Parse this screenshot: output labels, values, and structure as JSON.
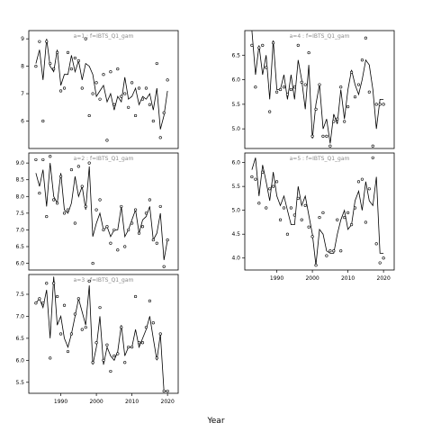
{
  "figure": {
    "xlabel": "Year"
  },
  "chart_data": {
    "type": "scatter",
    "xlabel": "Year",
    "ylabel": "",
    "xlim": [
      1981,
      2023
    ],
    "x_ticks": [
      1990,
      2000,
      2010,
      2020
    ],
    "panels": [
      {
        "strip": "a=1 : f=IBTS_Q1_gam",
        "ylim": [
          5.0,
          9.3
        ],
        "y_ticks": [
          6,
          7,
          8,
          9
        ],
        "line": {
          "x": [
            1983,
            1984,
            1985,
            1986,
            1987,
            1988,
            1989,
            1990,
            1991,
            1992,
            1993,
            1994,
            1995,
            1996,
            1997,
            1998,
            1999,
            2000,
            2001,
            2002,
            2003,
            2004,
            2005,
            2006,
            2007,
            2008,
            2009,
            2010,
            2011,
            2012,
            2013,
            2014,
            2015,
            2016,
            2017,
            2018,
            2019,
            2020
          ],
          "y": [
            8.1,
            8.6,
            7.5,
            9.0,
            8.0,
            7.8,
            8.6,
            7.3,
            7.7,
            7.7,
            8.4,
            7.8,
            8.2,
            7.5,
            8.1,
            8.0,
            7.7,
            6.9,
            7.1,
            7.3,
            6.7,
            7.0,
            6.4,
            6.9,
            6.7,
            7.6,
            6.8,
            6.9,
            7.2,
            6.6,
            6.9,
            6.8,
            7.0,
            6.4,
            7.2,
            5.7,
            6.2,
            7.1
          ]
        },
        "points": {
          "x": [
            1983,
            1984,
            1985,
            1986,
            1987,
            1988,
            1989,
            1990,
            1991,
            1992,
            1993,
            1994,
            1995,
            1996,
            1997,
            1998,
            1999,
            2000,
            2001,
            2002,
            2003,
            2004,
            2005,
            2006,
            2007,
            2008,
            2009,
            2010,
            2011,
            2012,
            2013,
            2014,
            2015,
            2016,
            2017,
            2018,
            2019,
            2020
          ],
          "y": [
            8.0,
            8.9,
            6.0,
            8.9,
            8.1,
            7.9,
            8.5,
            7.1,
            7.2,
            8.5,
            7.9,
            8.3,
            8.2,
            7.2,
            9.0,
            6.2,
            7.0,
            7.4,
            6.8,
            7.7,
            5.3,
            7.8,
            6.6,
            7.9,
            6.9,
            7.0,
            6.5,
            7.4,
            6.2,
            7.2,
            6.8,
            7.2,
            6.6,
            6.0,
            8.1,
            5.4,
            6.3,
            7.5
          ]
        }
      },
      {
        "strip": "a=2 : f=IBTS_Q1_gam",
        "ylim": [
          5.8,
          9.3
        ],
        "y_ticks": [
          6.0,
          6.5,
          7.0,
          7.5,
          8.0,
          8.5,
          9.0
        ],
        "line": {
          "x": [
            1983,
            1984,
            1985,
            1986,
            1987,
            1988,
            1989,
            1990,
            1991,
            1992,
            1993,
            1994,
            1995,
            1996,
            1997,
            1998,
            1999,
            2000,
            2001,
            2002,
            2003,
            2004,
            2005,
            2006,
            2007,
            2008,
            2009,
            2010,
            2011,
            2012,
            2013,
            2014,
            2015,
            2016,
            2017,
            2018,
            2019,
            2020
          ],
          "y": [
            8.7,
            8.3,
            8.8,
            7.7,
            9.0,
            8.0,
            7.8,
            8.7,
            7.6,
            7.5,
            7.8,
            8.6,
            8.0,
            8.3,
            7.6,
            8.9,
            6.8,
            7.2,
            7.5,
            7.0,
            7.1,
            6.8,
            7.0,
            7.0,
            7.7,
            6.8,
            7.0,
            7.3,
            7.6,
            6.9,
            7.3,
            7.4,
            7.7,
            6.7,
            6.9,
            7.5,
            6.1,
            6.7
          ]
        },
        "points": {
          "x": [
            1983,
            1984,
            1985,
            1986,
            1987,
            1988,
            1989,
            1990,
            1991,
            1992,
            1993,
            1994,
            1995,
            1996,
            1997,
            1998,
            1999,
            2000,
            2001,
            2002,
            2003,
            2004,
            2005,
            2006,
            2007,
            2008,
            2009,
            2010,
            2011,
            2012,
            2013,
            2014,
            2015,
            2016,
            2017,
            2018,
            2019,
            2020
          ],
          "y": [
            9.1,
            8.1,
            9.1,
            7.4,
            9.2,
            7.9,
            7.8,
            8.6,
            7.5,
            7.6,
            8.8,
            7.2,
            8.9,
            8.3,
            7.7,
            9.0,
            6.0,
            7.6,
            7.9,
            7.0,
            7.1,
            6.6,
            7.0,
            6.4,
            7.7,
            6.5,
            7.0,
            7.2,
            7.6,
            6.9,
            7.1,
            7.5,
            7.9,
            6.7,
            6.6,
            7.7,
            5.9,
            6.7
          ]
        }
      },
      {
        "strip": "a=3 : f=IBTS_Q1_gam",
        "ylim": [
          5.25,
          7.95
        ],
        "y_ticks": [
          5.5,
          6.0,
          6.5,
          7.0,
          7.5
        ],
        "line": {
          "x": [
            1983,
            1984,
            1985,
            1986,
            1987,
            1988,
            1989,
            1990,
            1991,
            1992,
            1993,
            1994,
            1995,
            1996,
            1997,
            1998,
            1999,
            2000,
            2001,
            2002,
            2003,
            2004,
            2005,
            2006,
            2007,
            2008,
            2009,
            2010,
            2011,
            2012,
            2013,
            2014,
            2015,
            2016,
            2017,
            2018,
            2019,
            2020
          ],
          "y": [
            7.3,
            7.4,
            7.2,
            7.6,
            6.5,
            7.9,
            6.8,
            7.0,
            6.5,
            6.3,
            6.6,
            7.0,
            7.4,
            7.1,
            6.8,
            7.7,
            5.9,
            6.3,
            7.0,
            5.9,
            6.3,
            6.1,
            6.0,
            6.2,
            6.8,
            6.1,
            6.3,
            6.3,
            6.7,
            6.3,
            6.5,
            6.7,
            7.0,
            6.5,
            6.0,
            6.6,
            5.3,
            5.3
          ]
        },
        "points": {
          "x": [
            1983,
            1984,
            1985,
            1986,
            1987,
            1988,
            1989,
            1990,
            1991,
            1992,
            1993,
            1994,
            1995,
            1996,
            1997,
            1998,
            1999,
            2000,
            2001,
            2002,
            2003,
            2004,
            2005,
            2006,
            2007,
            2008,
            2009,
            2010,
            2011,
            2012,
            2013,
            2014,
            2015,
            2016,
            2017,
            2018,
            2019,
            2020
          ],
          "y": [
            7.3,
            7.4,
            7.3,
            7.75,
            6.05,
            7.75,
            7.45,
            6.6,
            7.25,
            6.2,
            6.6,
            7.05,
            7.4,
            6.7,
            6.75,
            7.8,
            5.95,
            6.4,
            7.2,
            6.0,
            6.35,
            5.75,
            6.1,
            6.15,
            6.75,
            5.95,
            6.3,
            6.3,
            7.45,
            6.4,
            6.4,
            6.75,
            7.35,
            6.85,
            6.05,
            6.6,
            5.3,
            5.3
          ]
        }
      },
      {
        "strip": "a=4 : f=IBTS_Q1_gam",
        "ylim": [
          4.6,
          7.0
        ],
        "y_ticks": [
          5.0,
          5.5,
          6.0,
          6.5
        ],
        "line": {
          "x": [
            1983,
            1984,
            1985,
            1986,
            1987,
            1988,
            1989,
            1990,
            1991,
            1992,
            1993,
            1994,
            1995,
            1996,
            1997,
            1998,
            1999,
            2000,
            2001,
            2002,
            2003,
            2004,
            2005,
            2006,
            2007,
            2008,
            2009,
            2010,
            2011,
            2012,
            2013,
            2014,
            2015,
            2016,
            2017,
            2018,
            2019,
            2020
          ],
          "y": [
            7.0,
            6.1,
            6.7,
            6.1,
            6.5,
            5.6,
            6.8,
            5.8,
            5.8,
            6.1,
            5.6,
            6.1,
            5.6,
            6.4,
            6.0,
            5.4,
            6.3,
            4.8,
            5.5,
            5.9,
            5.0,
            5.2,
            4.7,
            5.3,
            5.1,
            5.8,
            5.2,
            5.8,
            6.2,
            5.9,
            5.7,
            6.0,
            6.4,
            6.3,
            5.8,
            5.0,
            5.6,
            5.6
          ]
        },
        "points": {
          "x": [
            1983,
            1984,
            1985,
            1986,
            1987,
            1988,
            1989,
            1990,
            1991,
            1992,
            1993,
            1994,
            1995,
            1996,
            1997,
            1998,
            1999,
            2000,
            2001,
            2002,
            2003,
            2004,
            2005,
            2006,
            2007,
            2008,
            2009,
            2010,
            2011,
            2012,
            2013,
            2014,
            2015,
            2016,
            2017,
            2018,
            2019,
            2020
          ],
          "y": [
            6.7,
            5.85,
            6.65,
            6.7,
            6.25,
            5.35,
            6.75,
            5.75,
            5.8,
            5.85,
            5.7,
            5.8,
            5.85,
            6.7,
            5.95,
            5.9,
            6.55,
            4.85,
            5.4,
            5.9,
            4.85,
            4.85,
            4.65,
            5.15,
            5.2,
            5.85,
            5.15,
            5.45,
            6.15,
            5.65,
            5.9,
            6.4,
            6.85,
            5.75,
            4.65,
            5.5,
            5.5,
            5.5
          ]
        }
      },
      {
        "strip": "a=5 : f=IBTS_Q1_gam",
        "ylim": [
          3.75,
          6.2
        ],
        "y_ticks": [
          4.0,
          4.5,
          5.0,
          5.5,
          6.0
        ],
        "line": {
          "x": [
            1983,
            1984,
            1985,
            1986,
            1987,
            1988,
            1989,
            1990,
            1991,
            1992,
            1993,
            1994,
            1995,
            1996,
            1997,
            1998,
            1999,
            2000,
            2001,
            2002,
            2003,
            2004,
            2005,
            2006,
            2007,
            2008,
            2009,
            2010,
            2011,
            2012,
            2013,
            2014,
            2015,
            2016,
            2017,
            2018,
            2019,
            2020
          ],
          "y": [
            5.85,
            6.1,
            5.3,
            5.95,
            5.6,
            5.2,
            5.8,
            5.3,
            5.1,
            5.3,
            5.0,
            4.7,
            4.7,
            5.5,
            5.1,
            5.3,
            4.9,
            4.5,
            3.85,
            4.6,
            4.5,
            4.15,
            4.1,
            4.1,
            4.5,
            4.8,
            5.0,
            4.6,
            4.7,
            5.2,
            5.4,
            5.0,
            5.6,
            5.2,
            5.1,
            5.7,
            4.1,
            4.1
          ]
        },
        "points": {
          "x": [
            1983,
            1984,
            1985,
            1986,
            1987,
            1988,
            1989,
            1990,
            1991,
            1992,
            1993,
            1994,
            1995,
            1996,
            1997,
            1998,
            1999,
            2000,
            2001,
            2002,
            2003,
            2004,
            2005,
            2006,
            2007,
            2008,
            2009,
            2010,
            2011,
            2012,
            2013,
            2014,
            2015,
            2016,
            2017,
            2018,
            2019,
            2020
          ],
          "y": [
            5.7,
            5.65,
            5.15,
            5.8,
            5.05,
            5.45,
            5.5,
            5.6,
            4.8,
            5.05,
            4.5,
            5.05,
            4.9,
            5.25,
            4.8,
            5.1,
            4.65,
            4.45,
            3.85,
            4.85,
            4.95,
            4.05,
            4.15,
            4.15,
            4.8,
            4.15,
            4.85,
            4.95,
            4.7,
            5.05,
            5.6,
            5.65,
            4.75,
            5.45,
            6.1,
            4.3,
            3.9,
            4.0
          ]
        }
      }
    ]
  }
}
